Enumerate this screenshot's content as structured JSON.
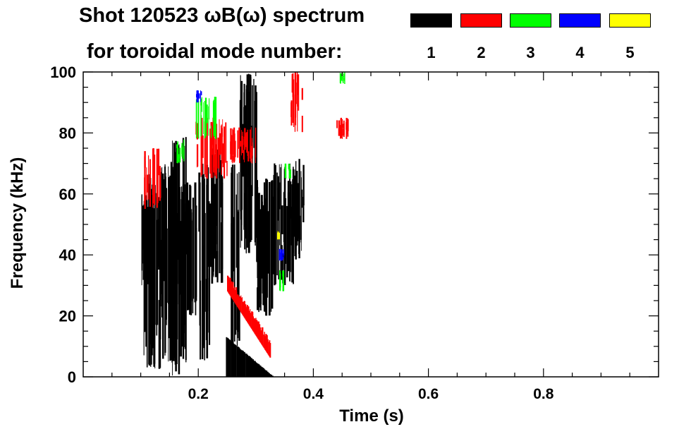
{
  "header": {
    "title": "Shot 120523 ωB(ω) spectrum",
    "subtitle": "for toroidal mode number:"
  },
  "legend": [
    {
      "label": "1",
      "color": "#000000"
    },
    {
      "label": "2",
      "color": "#ff0000"
    },
    {
      "label": "3",
      "color": "#00ff00"
    },
    {
      "label": "4",
      "color": "#0000ff"
    },
    {
      "label": "5",
      "color": "#ffff00"
    }
  ],
  "chart_data": {
    "type": "heatmap",
    "title": "Shot 120523 ωB(ω) spectrum",
    "xlabel": "Time (s)",
    "ylabel": "Frequency (kHz)",
    "xlim": [
      0.0,
      1.0
    ],
    "ylim": [
      0,
      100
    ],
    "xticks": [
      "0.2",
      "0.4",
      "0.6",
      "0.8"
    ],
    "xtick_values": [
      0.2,
      0.4,
      0.6,
      0.8
    ],
    "yticks": [
      "0",
      "20",
      "40",
      "60",
      "80",
      "100"
    ],
    "ytick_values": [
      0,
      20,
      40,
      60,
      80,
      100
    ],
    "grid": false,
    "series": [
      {
        "name": "1",
        "color": "#000000",
        "regions": [
          {
            "t": [
              0.1,
              0.115
            ],
            "f": [
              30,
              60
            ]
          },
          {
            "t": [
              0.103,
              0.135
            ],
            "f": [
              2,
              68
            ]
          },
          {
            "t": [
              0.135,
              0.16
            ],
            "f": [
              5,
              70
            ]
          },
          {
            "t": [
              0.15,
              0.178
            ],
            "f": [
              0,
              80
            ]
          },
          {
            "t": [
              0.17,
              0.195
            ],
            "f": [
              20,
              65
            ]
          },
          {
            "t": [
              0.2,
              0.22
            ],
            "f": [
              5,
              70
            ]
          },
          {
            "t": [
              0.22,
              0.24
            ],
            "f": [
              30,
              75
            ]
          },
          {
            "t": [
              0.255,
              0.27
            ],
            "f": [
              10,
              70
            ]
          },
          {
            "t": [
              0.27,
              0.3
            ],
            "f": [
              40,
              100
            ]
          },
          {
            "t": [
              0.3,
              0.33
            ],
            "f": [
              20,
              65
            ]
          },
          {
            "t": [
              0.33,
              0.365
            ],
            "f": [
              30,
              70
            ]
          },
          {
            "t": [
              0.363,
              0.382
            ],
            "f": [
              38,
              72
            ]
          }
        ],
        "features": [
          {
            "t": [
              0.248,
              0.33
            ],
            "f0": [
              13,
              0
            ]
          }
        ]
      },
      {
        "name": "2",
        "color": "#ff0000",
        "regions": [
          {
            "t": [
              0.105,
              0.135
            ],
            "f": [
              55,
              75
            ]
          },
          {
            "t": [
              0.195,
              0.25
            ],
            "f": [
              65,
              85
            ]
          },
          {
            "t": [
              0.255,
              0.3
            ],
            "f": [
              70,
              82
            ]
          },
          {
            "t": [
              0.36,
              0.38
            ],
            "f": [
              80,
              100
            ]
          },
          {
            "t": [
              0.44,
              0.46
            ],
            "f": [
              78,
              85
            ]
          }
        ],
        "features": [
          {
            "t": [
              0.25,
              0.325
            ],
            "f0": [
              30,
              8
            ]
          }
        ]
      },
      {
        "name": "3",
        "color": "#00ff00",
        "regions": [
          {
            "t": [
              0.16,
              0.175
            ],
            "f": [
              70,
              78
            ]
          },
          {
            "t": [
              0.195,
              0.23
            ],
            "f": [
              78,
              92
            ]
          },
          {
            "t": [
              0.34,
              0.35
            ],
            "f": [
              28,
              35
            ]
          },
          {
            "t": [
              0.35,
              0.36
            ],
            "f": [
              65,
              70
            ]
          },
          {
            "t": [
              0.445,
              0.455
            ],
            "f": [
              96,
              100
            ]
          }
        ]
      },
      {
        "name": "4",
        "color": "#0000ff",
        "regions": [
          {
            "t": [
              0.34,
              0.35
            ],
            "f": [
              38,
              42
            ]
          },
          {
            "t": [
              0.195,
              0.205
            ],
            "f": [
              90,
              94
            ]
          }
        ]
      },
      {
        "name": "5",
        "color": "#ffff00",
        "regions": [
          {
            "t": [
              0.335,
              0.34
            ],
            "f": [
              45,
              48
            ]
          }
        ]
      }
    ]
  }
}
